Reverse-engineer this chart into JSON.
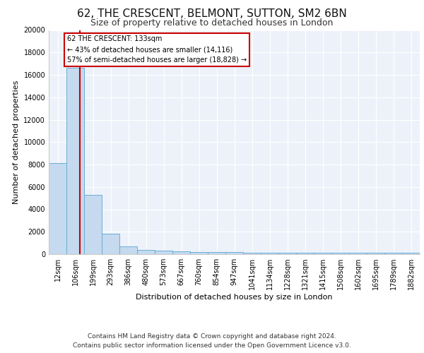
{
  "title": "62, THE CRESCENT, BELMONT, SUTTON, SM2 6BN",
  "subtitle": "Size of property relative to detached houses in London",
  "xlabel": "Distribution of detached houses by size in London",
  "ylabel": "Number of detached properties",
  "bar_labels": [
    "12sqm",
    "106sqm",
    "199sqm",
    "293sqm",
    "386sqm",
    "480sqm",
    "573sqm",
    "667sqm",
    "760sqm",
    "854sqm",
    "947sqm",
    "1041sqm",
    "1134sqm",
    "1228sqm",
    "1321sqm",
    "1415sqm",
    "1508sqm",
    "1602sqm",
    "1695sqm",
    "1789sqm",
    "1882sqm"
  ],
  "bar_values": [
    8100,
    16600,
    5300,
    1800,
    700,
    350,
    300,
    250,
    200,
    175,
    160,
    150,
    140,
    130,
    125,
    120,
    115,
    110,
    105,
    100,
    150
  ],
  "bar_color": "#c5d9ef",
  "bar_edgecolor": "#6aaed6",
  "red_line_x": 1.27,
  "red_line_color": "#cc0000",
  "annotation_title": "62 THE CRESCENT: 133sqm",
  "annotation_line1": "← 43% of detached houses are smaller (14,116)",
  "annotation_line2": "57% of semi-detached houses are larger (18,828) →",
  "annotation_box_color": "#ffffff",
  "annotation_box_edgecolor": "#cc0000",
  "ylim": [
    0,
    20000
  ],
  "yticks": [
    0,
    2000,
    4000,
    6000,
    8000,
    10000,
    12000,
    14000,
    16000,
    18000,
    20000
  ],
  "background_color": "#edf2fa",
  "footer_line1": "Contains HM Land Registry data © Crown copyright and database right 2024.",
  "footer_line2": "Contains public sector information licensed under the Open Government Licence v3.0.",
  "title_fontsize": 11,
  "subtitle_fontsize": 9,
  "axis_fontsize": 8,
  "tick_fontsize": 7,
  "footer_fontsize": 6.5
}
